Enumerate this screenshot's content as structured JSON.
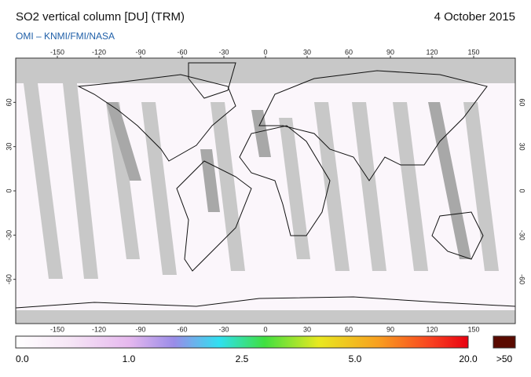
{
  "header": {
    "title": "SO2 vertical column [DU] (TRM)",
    "date": "4 October 2015",
    "subtitle": "OMI  –  KNMI/FMI/NASA"
  },
  "map": {
    "lon_range": [
      -180,
      180
    ],
    "lat_range": [
      -90,
      90
    ],
    "lon_ticks": [
      -150,
      -120,
      -90,
      -60,
      -30,
      0,
      30,
      60,
      90,
      120,
      150
    ],
    "lat_ticks": [
      60,
      30,
      0,
      -30,
      -60
    ]
  },
  "colorbar": {
    "labels": [
      "0.0",
      "1.0",
      "2.5",
      "5.0",
      "20.0"
    ],
    "overflow_label": ">50"
  }
}
